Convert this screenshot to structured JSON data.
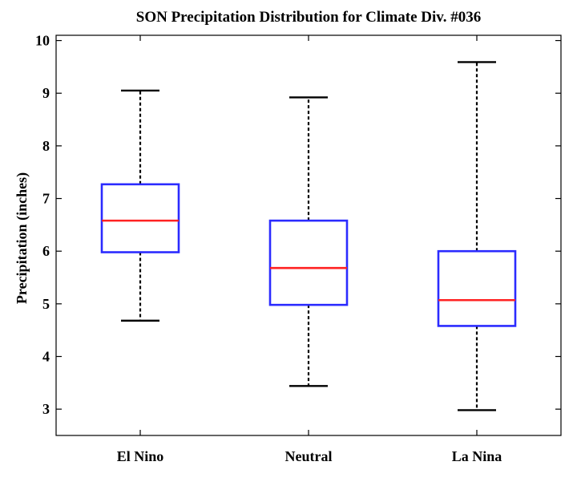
{
  "chart_data": {
    "type": "box",
    "title": "SON Precipitation Distribution for Climate Div. #036",
    "xlabel": "",
    "ylabel": "Precipitation (inches)",
    "ylim": [
      2.5,
      10.1
    ],
    "yticks": [
      3,
      4,
      5,
      6,
      7,
      8,
      9,
      10
    ],
    "categories": [
      "El Nino",
      "Neutral",
      "La Nina"
    ],
    "boxes": [
      {
        "category": "El Nino",
        "whisker_low": 4.68,
        "q1": 5.98,
        "median": 6.58,
        "q3": 7.27,
        "whisker_high": 9.05
      },
      {
        "category": "Neutral",
        "whisker_low": 3.44,
        "q1": 4.98,
        "median": 5.68,
        "q3": 6.58,
        "whisker_high": 8.92
      },
      {
        "category": "La Nina",
        "whisker_low": 2.98,
        "q1": 4.58,
        "median": 5.07,
        "q3": 6.0,
        "whisker_high": 9.59
      }
    ],
    "grid": false,
    "colors": {
      "box": "#2b2bff",
      "median": "#ff2222",
      "whisker": "#000000"
    }
  }
}
